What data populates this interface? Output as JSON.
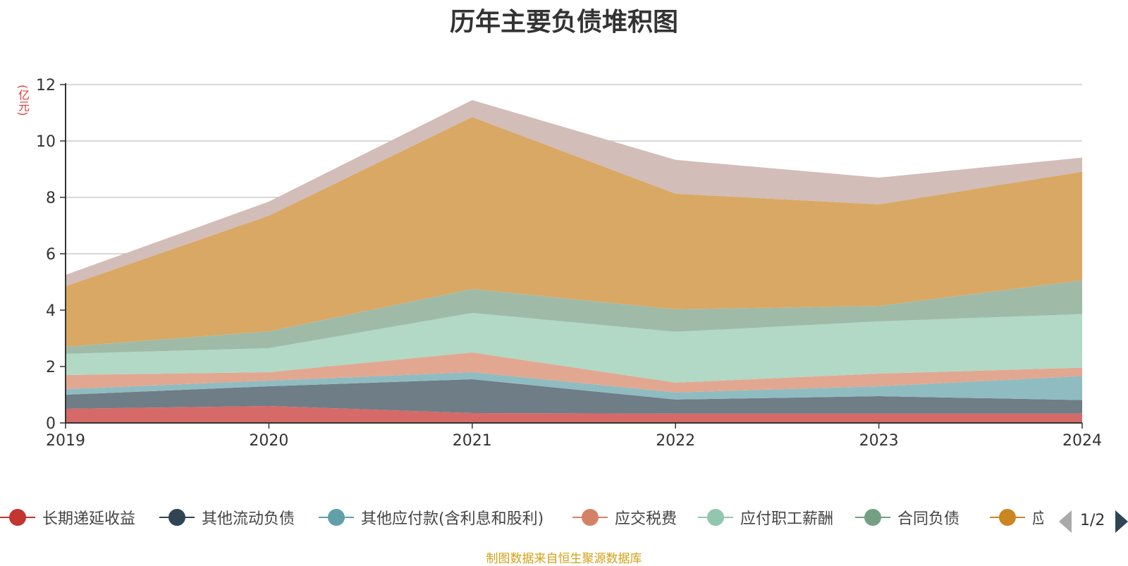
{
  "chart_data": {
    "type": "area",
    "title": "历年主要负债堆积图",
    "unit_label": "(亿元)",
    "source": "制图数据来自恒生聚源数据库",
    "x": [
      "2019",
      "2020",
      "2021",
      "2022",
      "2023",
      "2024"
    ],
    "ylim": [
      0,
      12
    ],
    "yticks": [
      0,
      2,
      4,
      6,
      8,
      10,
      12
    ],
    "stacked": true,
    "grid": true,
    "legend_position": "bottom",
    "legend_page": "1/2",
    "series": [
      {
        "name": "长期递延收益",
        "color": "#c23531",
        "fill": "#d66a68",
        "values": [
          0.5,
          0.6,
          0.35,
          0.33,
          0.33,
          0.33
        ]
      },
      {
        "name": "其他流动负债",
        "color": "#2f4554",
        "fill": "#6f7d87",
        "values": [
          0.5,
          0.7,
          1.2,
          0.5,
          0.62,
          0.48
        ]
      },
      {
        "name": "其他应付款(含利息和股利)",
        "color": "#61a0a8",
        "fill": "#8fbcc1",
        "values": [
          0.2,
          0.2,
          0.25,
          0.25,
          0.35,
          0.85
        ]
      },
      {
        "name": "应交税费",
        "color": "#d48265",
        "fill": "#e2a791",
        "values": [
          0.5,
          0.3,
          0.7,
          0.35,
          0.45,
          0.3
        ]
      },
      {
        "name": "应付职工薪酬",
        "color": "#91c7ae",
        "fill": "#b1d9c6",
        "values": [
          0.75,
          0.85,
          1.4,
          1.8,
          1.85,
          1.9
        ]
      },
      {
        "name": "合同负债",
        "color": "#749f83",
        "fill": "#9fbba8",
        "values": [
          0.25,
          0.6,
          0.85,
          0.8,
          0.55,
          1.2
        ]
      },
      {
        "name": "应付账款",
        "color": "#ca8622",
        "fill": "#d9a864",
        "values": [
          2.15,
          4.1,
          6.1,
          4.1,
          3.6,
          3.85
        ]
      },
      {
        "name": "",
        "color": "#bda29a",
        "fill": "#d2bdb8",
        "values": [
          0.4,
          0.5,
          0.6,
          1.2,
          0.95,
          0.5
        ]
      }
    ],
    "legend_visible_labels": [
      "长期递延收益",
      "其他流动负债",
      "其他应付款(含利息和股利)",
      "应交税费",
      "应付职工薪酬",
      "合同负债",
      "应付账款"
    ]
  }
}
